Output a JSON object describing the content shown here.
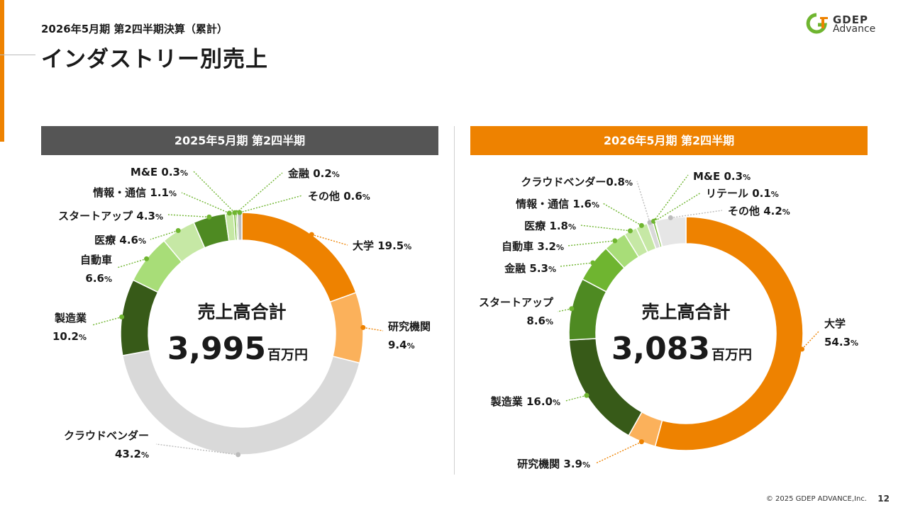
{
  "header": {
    "subtitle": "2026年5月期 第2四半期決算（累計）",
    "title": "インダストリー別売上",
    "logo_line1": "GDEP",
    "logo_line2": "Advance"
  },
  "footer": {
    "copyright": "© 2025 GDEP ADVANCE,Inc.",
    "page": "12"
  },
  "colors": {
    "orange": "#ee8200",
    "light_orange": "#fbb15b",
    "gray": "#d9d9d9",
    "dark_green": "#375a18",
    "green": "#4e8a22",
    "mid_green": "#6fb530",
    "light_green": "#a8dd78",
    "pale_green": "#c6e8a5",
    "silver": "#bdbdbd"
  },
  "chart_data": [
    {
      "type": "pie",
      "title": "2025年5月期 第2四半期",
      "center_title": "売上高合計",
      "center_value": "3,995",
      "center_unit": "百万円",
      "slices": [
        {
          "name": "大学",
          "value": 19.5,
          "label": "大学 19.5",
          "pct": "%",
          "color": "#ee8200"
        },
        {
          "name": "研究機関",
          "value": 9.4,
          "label": [
            "研究機関",
            "9.4"
          ],
          "pct": "%",
          "color": "#fbb15b"
        },
        {
          "name": "クラウドベンダー",
          "value": 43.2,
          "label": [
            "クラウドベンダー",
            "43.2"
          ],
          "pct": "%",
          "color": "#d9d9d9"
        },
        {
          "name": "製造業",
          "value": 10.2,
          "label": [
            "製造業",
            "10.2"
          ],
          "pct": "%",
          "color": "#375a18"
        },
        {
          "name": "自動車",
          "value": 6.6,
          "label": [
            "自動車",
            "6.6"
          ],
          "pct": "%",
          "color": "#a8dd78"
        },
        {
          "name": "医療",
          "value": 4.6,
          "label": "医療 4.6",
          "pct": "%",
          "color": "#c6e8a5"
        },
        {
          "name": "スタートアップ",
          "value": 4.3,
          "label": "スタートアップ 4.3",
          "pct": "%",
          "color": "#4e8a22"
        },
        {
          "name": "情報・通信",
          "value": 1.1,
          "label": "情報・通信 1.1",
          "pct": "%",
          "color": "#c6e8a5"
        },
        {
          "name": "M&E",
          "value": 0.3,
          "label": "M&E 0.3",
          "pct": "%",
          "color": "#6fb530"
        },
        {
          "name": "金融",
          "value": 0.2,
          "label": "金融 0.2",
          "pct": "%",
          "color": "#6fb530"
        },
        {
          "name": "その他",
          "value": 0.6,
          "label": "その他 0.6",
          "pct": "%",
          "color": "#bdbdbd"
        }
      ]
    },
    {
      "type": "pie",
      "title": "2026年5月期 第2四半期",
      "center_title": "売上高合計",
      "center_value": "3,083",
      "center_unit": "百万円",
      "slices": [
        {
          "name": "大学",
          "value": 54.3,
          "label": [
            "大学",
            "54.3"
          ],
          "pct": "%",
          "color": "#ee8200"
        },
        {
          "name": "研究機関",
          "value": 3.9,
          "label": "研究機関 3.9",
          "pct": "%",
          "color": "#fbb15b"
        },
        {
          "name": "製造業",
          "value": 16.0,
          "label": "製造業 16.0",
          "pct": "%",
          "color": "#375a18"
        },
        {
          "name": "スタートアップ",
          "value": 8.6,
          "label": [
            "スタートアップ",
            "8.6"
          ],
          "pct": "%",
          "color": "#4e8a22"
        },
        {
          "name": "金融",
          "value": 5.3,
          "label": "金融 5.3",
          "pct": "%",
          "color": "#6fb530"
        },
        {
          "name": "自動車",
          "value": 3.2,
          "label": "自動車 3.2",
          "pct": "%",
          "color": "#a8dd78"
        },
        {
          "name": "医療",
          "value": 1.8,
          "label": "医療 1.8",
          "pct": "%",
          "color": "#c6e8a5"
        },
        {
          "name": "情報・通信",
          "value": 1.6,
          "label": "情報・通信 1.6",
          "pct": "%",
          "color": "#c6e8a5"
        },
        {
          "name": "クラウドベンダー",
          "value": 0.8,
          "label": "クラウドベンダー0.8",
          "pct": "%",
          "color": "#d9d9d9"
        },
        {
          "name": "M&E",
          "value": 0.3,
          "label": "M&E 0.3",
          "pct": "%",
          "color": "#6fb530"
        },
        {
          "name": "リテール",
          "value": 0.1,
          "label": "リテール 0.1",
          "pct": "%",
          "color": "#4e8a22"
        },
        {
          "name": "その他",
          "value": 4.2,
          "label": "その他 4.2",
          "pct": "%",
          "color": "#e6e6e6"
        }
      ]
    }
  ]
}
